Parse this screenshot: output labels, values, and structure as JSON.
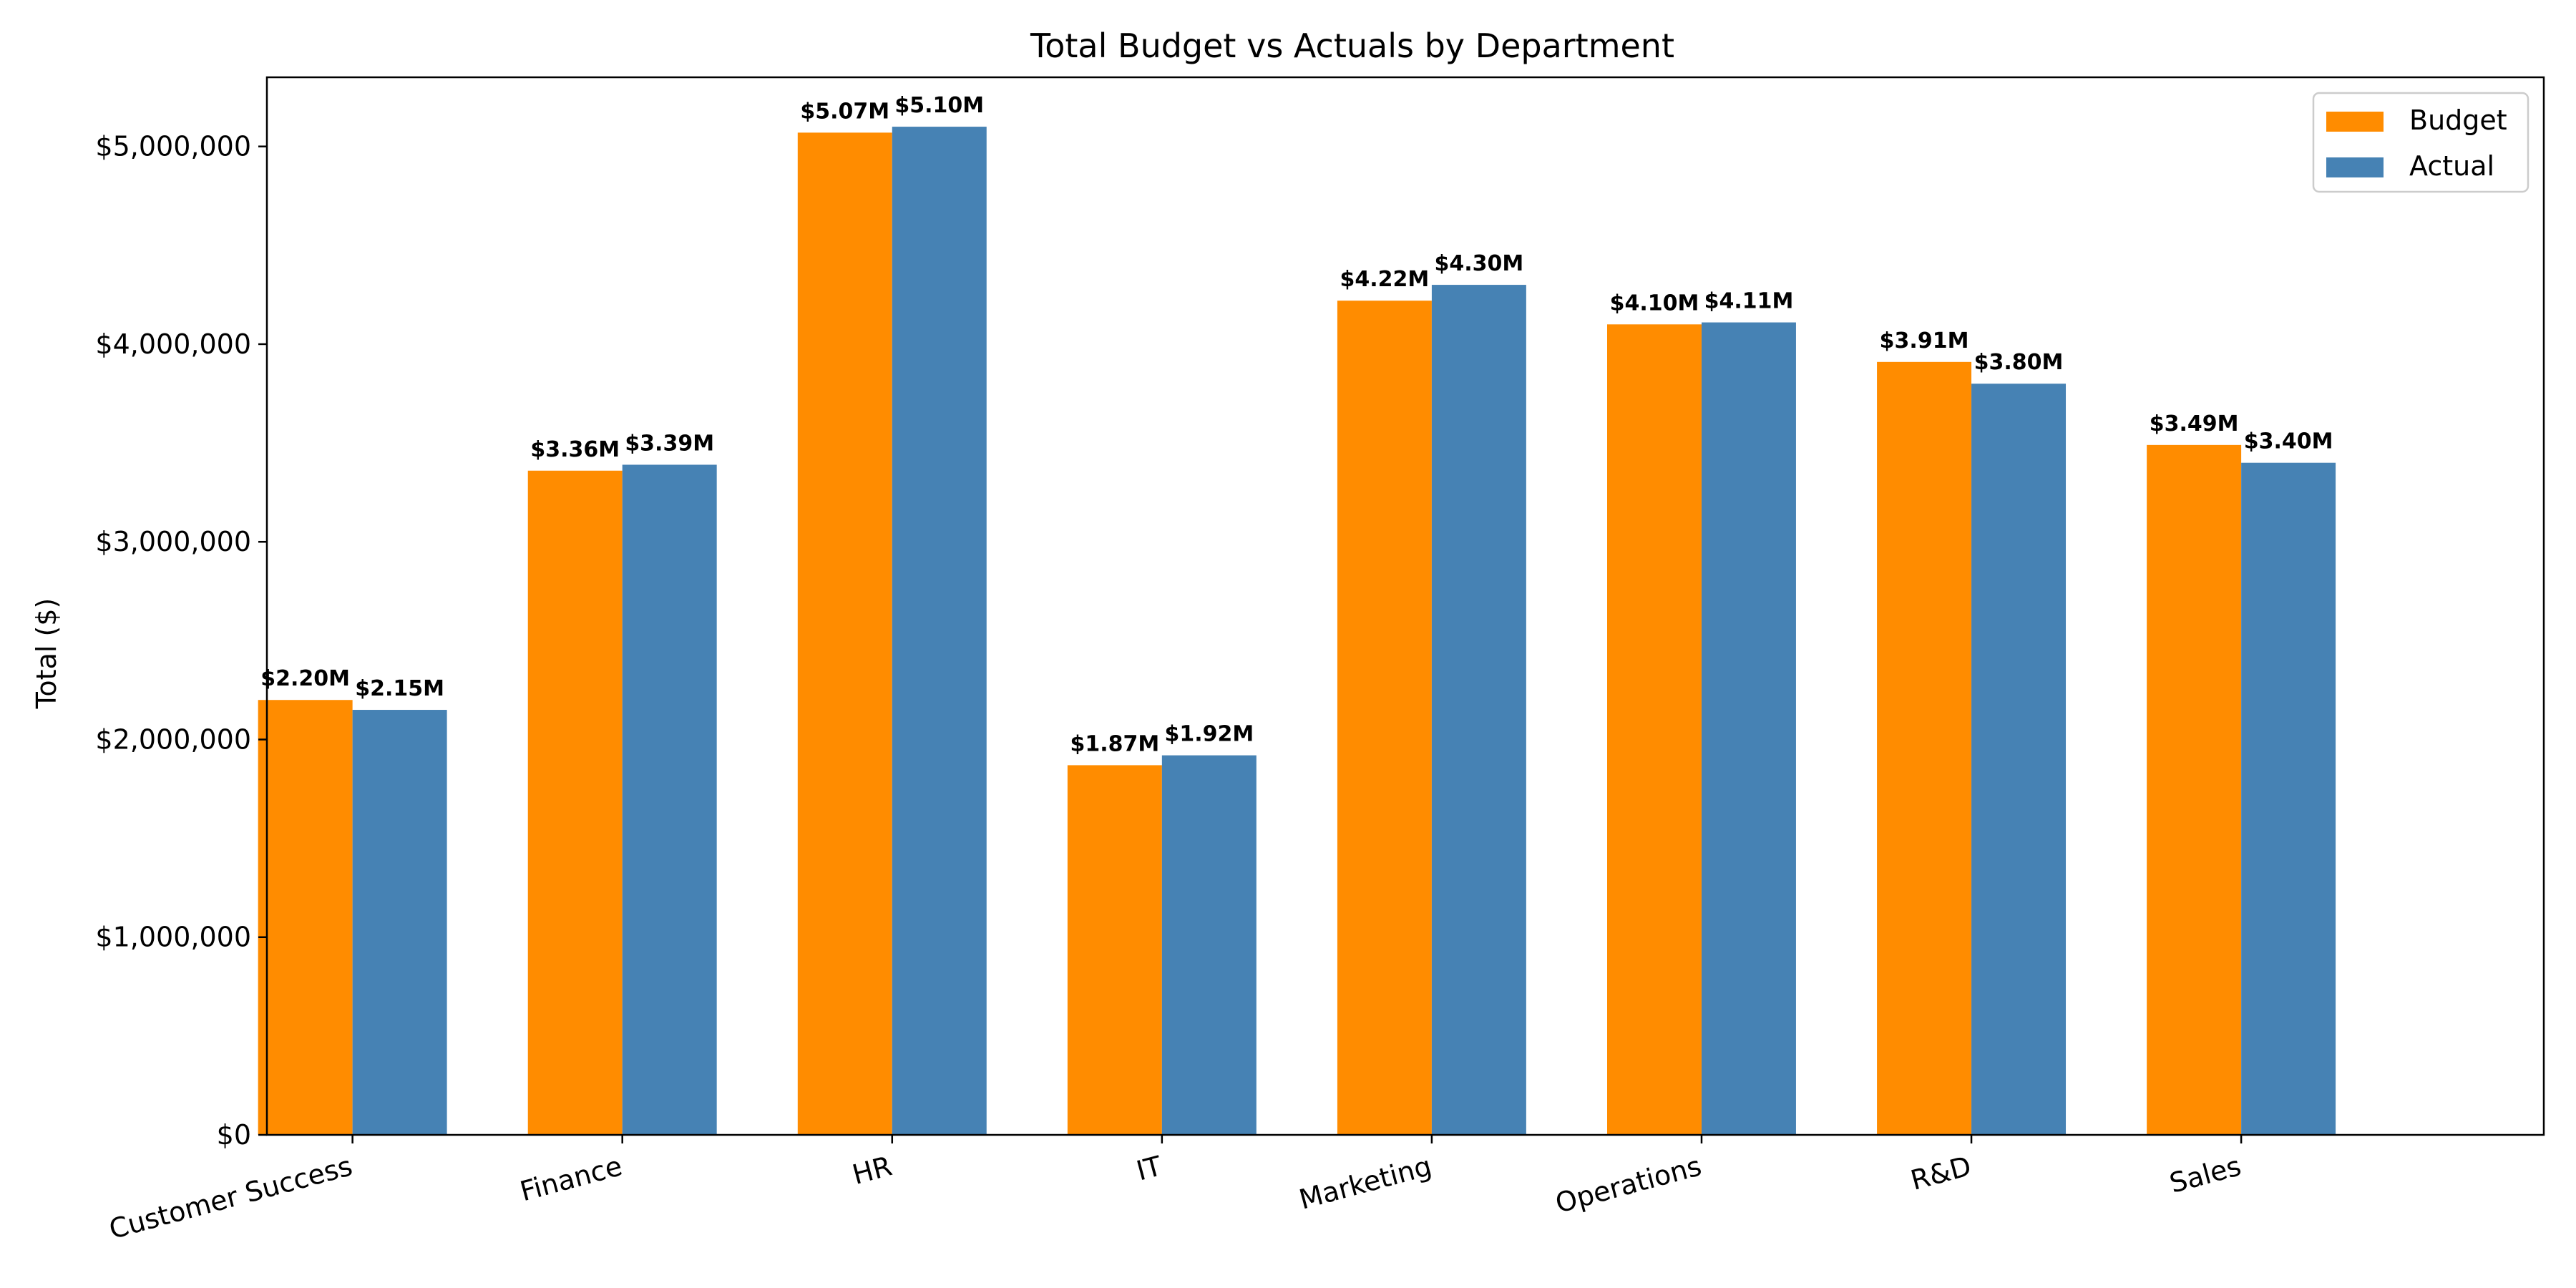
{
  "chart_data": {
    "type": "bar",
    "title": "Total Budget vs Actuals by Department",
    "xlabel": "",
    "ylabel": "Total ($)",
    "ylim": [
      0,
      5350000
    ],
    "yticks": [
      0,
      1000000,
      2000000,
      3000000,
      4000000,
      5000000
    ],
    "ytick_labels": [
      "$0",
      "$1,000,000",
      "$2,000,000",
      "$3,000,000",
      "$4,000,000",
      "$5,000,000"
    ],
    "categories": [
      "Customer Success",
      "Finance",
      "HR",
      "IT",
      "Marketing",
      "Operations",
      "R&D",
      "Sales"
    ],
    "series": [
      {
        "name": "Budget",
        "color": "#ff8c00",
        "values": [
          2200000,
          3360000,
          5070000,
          1870000,
          4220000,
          4100000,
          3910000,
          3490000
        ],
        "labels": [
          "$2.20M",
          "$3.36M",
          "$5.07M",
          "$1.87M",
          "$4.22M",
          "$4.10M",
          "$3.91M",
          "$3.49M"
        ]
      },
      {
        "name": "Actual",
        "color": "#4682b4",
        "values": [
          2150000,
          3390000,
          5100000,
          1920000,
          4300000,
          4110000,
          3800000,
          3400000
        ],
        "labels": [
          "$2.15M",
          "$3.39M",
          "$5.10M",
          "$1.92M",
          "$4.30M",
          "$4.11M",
          "$3.80M",
          "$3.40M"
        ]
      }
    ],
    "grid": false,
    "legend_position": "top-right"
  }
}
